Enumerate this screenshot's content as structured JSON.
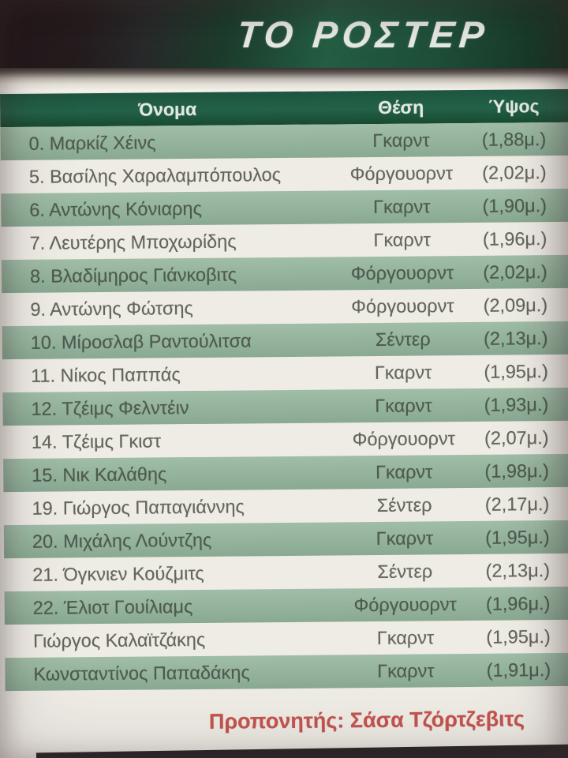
{
  "title": "ΤΟ ΡΟΣΤΕΡ",
  "table": {
    "headers": [
      "Όνομα",
      "Θέση",
      "Ύψος"
    ],
    "rows": [
      {
        "name": "0. Μαρκίζ Χέινς",
        "position": "Γκαρντ",
        "height": "(1,88μ.)"
      },
      {
        "name": "5. Βασίλης Χαραλαμπόπουλος",
        "position": "Φόργουορντ",
        "height": "(2,02μ.)"
      },
      {
        "name": "6. Αντώνης Κόνιαρης",
        "position": "Γκαρντ",
        "height": "(1,90μ.)"
      },
      {
        "name": "7. Λευτέρης Μποχωρίδης",
        "position": "Γκαρντ",
        "height": "(1,96μ.)"
      },
      {
        "name": "8. Βλαδίμηρος Γιάνκοβιτς",
        "position": "Φόργουορντ",
        "height": "(2,02μ.)"
      },
      {
        "name": "9. Αντώνης Φώτσης",
        "position": "Φόργουορντ",
        "height": "(2,09μ.)"
      },
      {
        "name": "10. Μίροσλαβ Ραντούλιτσα",
        "position": "Σέντερ",
        "height": "(2,13μ.)"
      },
      {
        "name": "11. Νίκος Παππάς",
        "position": "Γκαρντ",
        "height": "(1,95μ.)"
      },
      {
        "name": "12. Τζέιμς Φελντέιν",
        "position": "Γκαρντ",
        "height": "(1,93μ.)"
      },
      {
        "name": "14. Τζέιμς Γκιστ",
        "position": "Φόργουορντ",
        "height": "(2,07μ.)"
      },
      {
        "name": "15. Νικ Καλάθης",
        "position": "Γκαρντ",
        "height": "(1,98μ.)"
      },
      {
        "name": "19. Γιώργος Παπαγιάννης",
        "position": "Σέντερ",
        "height": "(2,17μ.)"
      },
      {
        "name": "20. Μιχάλης Λούντζης",
        "position": "Γκαρντ",
        "height": "(1,95μ.)"
      },
      {
        "name": "21. Όγκνιεν Κούζμιτς",
        "position": "Σέντερ",
        "height": "(2,13μ.)"
      },
      {
        "name": "22. Έλιοτ Γουίλιαμς",
        "position": "Φόργουορντ",
        "height": "(1,96μ.)"
      },
      {
        "name": "Γιώργος Καλαϊτζάκης",
        "position": "Γκαρντ",
        "height": "(1,95μ.)"
      },
      {
        "name": "Κωνσταντίνος Παπαδάκης",
        "position": "Γκαρντ",
        "height": "(1,91μ.)"
      }
    ]
  },
  "footer": {
    "coach_label": "Προπονητής:",
    "coach_name": "Σάσα Τζόρτζεβιτς"
  },
  "colors": {
    "header_green": "#1e5a42",
    "row_green": "#97b7a0",
    "title_text": "#e9ebe6",
    "row_text": "#63665b",
    "row_text_green": "#4f5a50",
    "coach_red": "#c4544e",
    "sheet_bg": "#efece6"
  }
}
